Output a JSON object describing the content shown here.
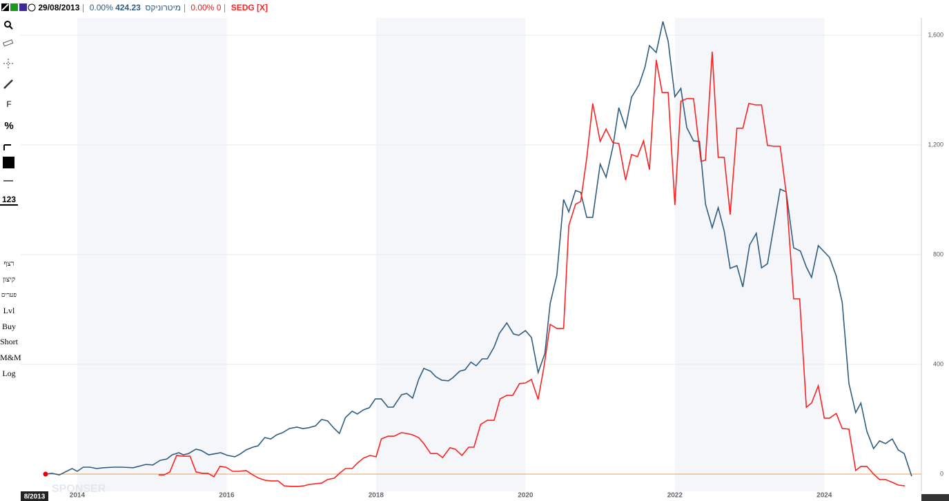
{
  "header": {
    "date": "29/08/2013",
    "change_a": "0.00%",
    "price_a": "424.23",
    "change_b": "0.00%",
    "price_b": "0",
    "cursor_date": "8/2013",
    "watermark": "SPONSER"
  },
  "toolbar": [
    "F",
    "%",
    "123",
    "רצף",
    "קיצון",
    "פערים",
    "Lvl",
    "Buy",
    "Short",
    "M&M",
    "Log"
  ],
  "chart_data": {
    "type": "line",
    "xlim": [
      2013.243,
      2025.3
    ],
    "ylim": [
      -63,
      1663
    ],
    "xticks": [
      2014,
      2016,
      2018,
      2020,
      2022,
      2024
    ],
    "yticks": [
      0,
      400,
      800,
      {
        "value": 1200,
        "label": "1,200"
      },
      {
        "value": 1600,
        "label": "1,600"
      }
    ],
    "grid": true,
    "series": [
      {
        "name": "מיטרוניקס",
        "color": "#2e5b7f",
        "x": [
          2013.58,
          2013.66,
          2013.76,
          2013.93,
          2014.0,
          2014.08,
          2014.17,
          2014.26,
          2014.35,
          2014.49,
          2014.6,
          2014.75,
          2014.92,
          2015.01,
          2015.11,
          2015.2,
          2015.27,
          2015.36,
          2015.42,
          2015.49,
          2015.59,
          2015.66,
          2015.76,
          2015.86,
          2015.92,
          2016.01,
          2016.11,
          2016.18,
          2016.26,
          2016.35,
          2016.42,
          2016.51,
          2016.59,
          2016.67,
          2016.75,
          2016.84,
          2016.94,
          2017.02,
          2017.1,
          2017.19,
          2017.27,
          2017.35,
          2017.44,
          2017.51,
          2017.59,
          2017.68,
          2017.75,
          2017.83,
          2017.91,
          2017.99,
          2018.07,
          2018.16,
          2018.23,
          2018.34,
          2018.41,
          2018.49,
          2018.57,
          2018.64,
          2018.73,
          2018.8,
          2018.88,
          2018.97,
          2019.03,
          2019.12,
          2019.19,
          2019.27,
          2019.34,
          2019.42,
          2019.49,
          2019.58,
          2019.65,
          2019.75,
          2019.84,
          2019.91,
          2020.0,
          2020.08,
          2020.17,
          2020.26,
          2020.33,
          2020.42,
          2020.51,
          2020.58,
          2020.67,
          2020.74,
          2020.82,
          2020.9,
          2021.0,
          2021.08,
          2021.17,
          2021.25,
          2021.34,
          2021.42,
          2021.52,
          2021.6,
          2021.66,
          2021.75,
          2021.84,
          2021.91,
          2022.0,
          2022.08,
          2022.16,
          2022.25,
          2022.33,
          2022.41,
          2022.5,
          2022.58,
          2022.66,
          2022.74,
          2022.83,
          2022.91,
          2023.0,
          2023.09,
          2023.16,
          2023.24,
          2023.41,
          2023.49,
          2023.59,
          2023.68,
          2023.76,
          2023.83,
          2023.92,
          2024.0,
          2024.07,
          2024.16,
          2024.24,
          2024.33,
          2024.42,
          2024.49,
          2024.57,
          2024.66,
          2024.74,
          2024.82,
          2024.91,
          2024.99,
          2025.07,
          2025.17
        ],
        "values": [
          0,
          3,
          -3,
          20,
          10,
          25,
          25,
          20,
          23,
          25,
          25,
          23,
          35,
          33,
          50,
          55,
          70,
          78,
          70,
          75,
          91,
          86,
          70,
          75,
          78,
          68,
          63,
          73,
          88,
          98,
          103,
          133,
          128,
          143,
          151,
          166,
          171,
          166,
          169,
          176,
          199,
          194,
          166,
          148,
          206,
          229,
          219,
          234,
          242,
          274,
          274,
          244,
          244,
          289,
          294,
          277,
          345,
          385,
          375,
          355,
          342,
          340,
          352,
          375,
          380,
          408,
          395,
          420,
          420,
          463,
          513,
          551,
          511,
          506,
          523,
          498,
          370,
          440,
          621,
          725,
          1001,
          956,
          1034,
          1027,
          936,
          936,
          1130,
          1082,
          1193,
          1336,
          1263,
          1374,
          1419,
          1484,
          1562,
          1537,
          1650,
          1578,
          1376,
          1406,
          1263,
          1215,
          1213,
          984,
          898,
          971,
          886,
          750,
          760,
          682,
          835,
          878,
          752,
          767,
          1039,
          1029,
          825,
          813,
          755,
          717,
          833,
          810,
          790,
          722,
          626,
          330,
          224,
          259,
          156,
          93,
          121,
          111,
          128,
          88,
          75,
          -8
        ]
      },
      {
        "name": "SEDG [X]",
        "color": "#ff2020",
        "x": [
          2015.09,
          2015.16,
          2015.24,
          2015.33,
          2015.41,
          2015.51,
          2015.59,
          2015.67,
          2015.75,
          2015.83,
          2015.91,
          2015.99,
          2016.08,
          2016.16,
          2016.26,
          2016.35,
          2016.43,
          2016.52,
          2016.6,
          2016.69,
          2016.77,
          2016.86,
          2016.96,
          2017.03,
          2017.1,
          2017.19,
          2017.27,
          2017.35,
          2017.44,
          2017.52,
          2017.59,
          2017.68,
          2017.75,
          2017.83,
          2017.92,
          2018.0,
          2018.07,
          2018.16,
          2018.24,
          2018.34,
          2018.41,
          2018.49,
          2018.57,
          2018.64,
          2018.73,
          2018.82,
          2018.89,
          2018.99,
          2019.06,
          2019.15,
          2019.24,
          2019.31,
          2019.4,
          2019.49,
          2019.58,
          2019.66,
          2019.75,
          2019.83,
          2019.92,
          2020.0,
          2020.08,
          2020.17,
          2020.25,
          2020.33,
          2020.42,
          2020.51,
          2020.58,
          2020.67,
          2020.74,
          2020.82,
          2020.9,
          2021.0,
          2021.08,
          2021.17,
          2021.25,
          2021.34,
          2021.42,
          2021.5,
          2021.58,
          2021.66,
          2021.75,
          2021.83,
          2021.91,
          2022.0,
          2022.08,
          2022.16,
          2022.25,
          2022.35,
          2022.41,
          2022.5,
          2022.58,
          2022.66,
          2022.74,
          2022.83,
          2022.91,
          2022.99,
          2023.08,
          2023.16,
          2023.24,
          2023.33,
          2023.41,
          2023.49,
          2023.59,
          2023.67,
          2023.76,
          2023.83,
          2023.92,
          2024.0,
          2024.07,
          2024.16,
          2024.24,
          2024.33,
          2024.42,
          2024.49,
          2024.57,
          2024.66,
          2024.74,
          2024.82,
          2024.91,
          2024.99,
          2025.08
        ],
        "values": [
          -3,
          -3,
          8,
          68,
          65,
          65,
          8,
          3,
          3,
          -10,
          28,
          25,
          10,
          10,
          13,
          -3,
          -15,
          -23,
          -25,
          -25,
          -43,
          -45,
          -45,
          -43,
          -38,
          -35,
          -33,
          -20,
          -15,
          5,
          20,
          20,
          40,
          58,
          68,
          63,
          128,
          138,
          138,
          151,
          148,
          143,
          133,
          111,
          75,
          75,
          60,
          96,
          91,
          68,
          98,
          98,
          181,
          196,
          196,
          274,
          287,
          287,
          330,
          332,
          345,
          272,
          395,
          546,
          531,
          531,
          906,
          984,
          994,
          1152,
          1351,
          1213,
          1258,
          1208,
          1205,
          1072,
          1165,
          1157,
          1215,
          1110,
          1510,
          1391,
          1391,
          981,
          1359,
          1369,
          1369,
          1140,
          1145,
          1540,
          1155,
          1155,
          946,
          1261,
          1261,
          1351,
          1346,
          1346,
          1198,
          1195,
          1195,
          1024,
          639,
          639,
          244,
          259,
          322,
          204,
          204,
          221,
          166,
          164,
          13,
          28,
          28,
          0,
          -20,
          -20,
          -30,
          -40,
          -43
        ]
      }
    ]
  }
}
